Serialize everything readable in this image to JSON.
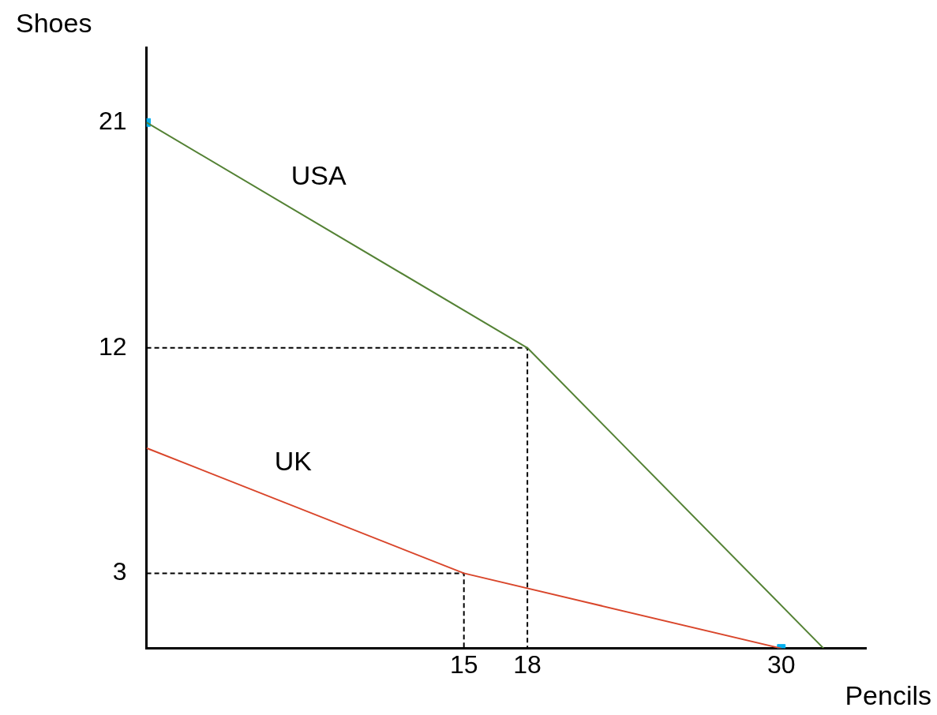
{
  "chart_data": {
    "type": "line",
    "xlabel": "Pencils",
    "ylabel": "Shoes",
    "xlim": [
      0,
      34
    ],
    "ylim": [
      0,
      24
    ],
    "xticks": [
      15,
      18,
      30
    ],
    "yticks": [
      3,
      12,
      21
    ],
    "grid": false,
    "legend": false,
    "series": [
      {
        "name": "USA",
        "color": "#548235",
        "x": [
          0,
          18,
          32
        ],
        "values": [
          21,
          12,
          0
        ]
      },
      {
        "name": "UK",
        "color": "#d9462b",
        "x": [
          0,
          15,
          30
        ],
        "values": [
          8,
          3,
          0
        ]
      },
      {
        "color": "#000000",
        "line_style": "dashed",
        "x": [
          0,
          18,
          18
        ],
        "values": [
          12,
          12,
          0
        ]
      },
      {
        "color": "#000000",
        "line_style": "dashed",
        "x": [
          0,
          15,
          15
        ],
        "values": [
          3,
          3,
          0
        ]
      },
      {
        "type": "scatter",
        "color": "#00b0f0",
        "marker": "square",
        "x": [
          0,
          30
        ],
        "values": [
          21,
          0
        ]
      }
    ]
  }
}
